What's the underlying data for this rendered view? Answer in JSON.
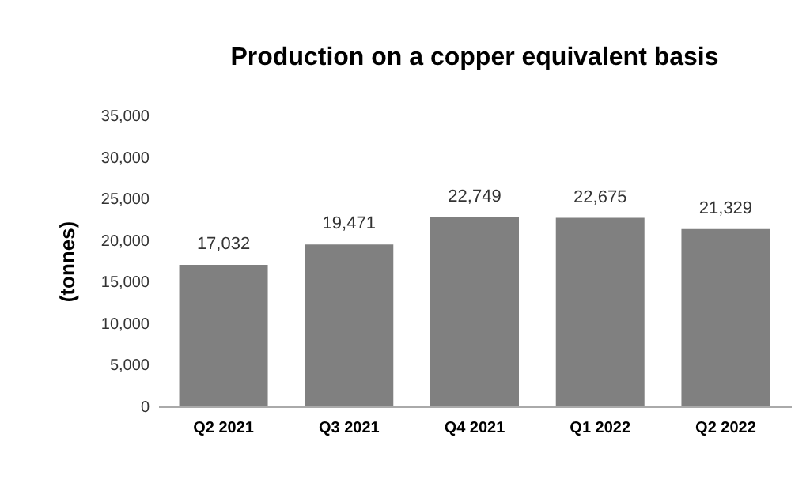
{
  "chart_data": {
    "type": "bar",
    "title": "Production on a copper equivalent basis",
    "ylabel": "(tonnes)",
    "categories": [
      "Q2 2021",
      "Q3 2021",
      "Q4 2021",
      "Q1 2022",
      "Q2 2022"
    ],
    "values": [
      17032,
      19471,
      22749,
      22675,
      21329
    ],
    "color": "#808080",
    "value_labels": [
      "17,032",
      "19,471",
      "22,749",
      "22,675",
      "21,329"
    ],
    "ylim": [
      0,
      35000
    ],
    "yticks": [
      0,
      {
        "value": 5000,
        "label": "5,000"
      },
      {
        "value": 10000,
        "label": "10,000"
      },
      {
        "value": 15000,
        "label": "15,000"
      },
      {
        "value": 20000,
        "label": "20,000"
      },
      {
        "value": 25000,
        "label": "25,000"
      },
      {
        "value": 30000,
        "label": "30,000"
      },
      {
        "value": 35000,
        "label": "35,000"
      }
    ],
    "grid": false
  }
}
